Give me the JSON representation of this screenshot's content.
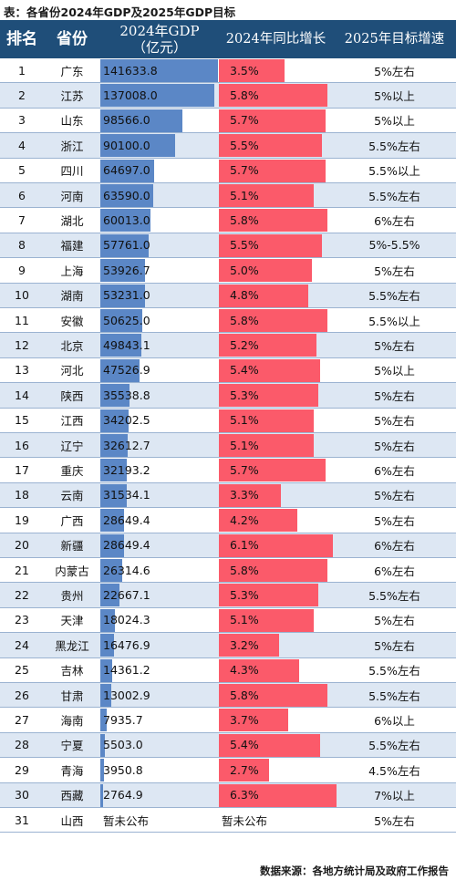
{
  "title": "表：各省份2024年GDP及2025年GDP目标",
  "headers": {
    "rank": "排名",
    "province": "省份",
    "gdp_line1": "2024年GDP",
    "gdp_line2": "（亿元）",
    "growth": "2024年同比增长",
    "target": "2025年目标增速"
  },
  "source": "数据来源：各地方统计局及政府工作报告",
  "colors": {
    "header_bg": "#1f4e79",
    "gdp_bar": "#5b87c6",
    "growth_bar": "#fb5a6a",
    "alt_row": "#dde7f3"
  },
  "chart_data": {
    "type": "table",
    "columns": [
      "排名",
      "省份",
      "2024年GDP（亿元）",
      "2024年同比增长",
      "2025年目标增速"
    ],
    "rows": [
      {
        "rank": "1",
        "province": "广东",
        "gdp": 141633.8,
        "gdp_text": "141633.8",
        "growth": 3.5,
        "growth_text": "3.5%",
        "target": "5%左右"
      },
      {
        "rank": "2",
        "province": "江苏",
        "gdp": 137008.0,
        "gdp_text": "137008.0",
        "growth": 5.8,
        "growth_text": "5.8%",
        "target": "5%以上"
      },
      {
        "rank": "3",
        "province": "山东",
        "gdp": 98566.0,
        "gdp_text": "98566.0",
        "growth": 5.7,
        "growth_text": "5.7%",
        "target": "5%以上"
      },
      {
        "rank": "4",
        "province": "浙江",
        "gdp": 90100.0,
        "gdp_text": "90100.0",
        "growth": 5.5,
        "growth_text": "5.5%",
        "target": "5.5%左右"
      },
      {
        "rank": "5",
        "province": "四川",
        "gdp": 64697.0,
        "gdp_text": "64697.0",
        "growth": 5.7,
        "growth_text": "5.7%",
        "target": "5.5%以上"
      },
      {
        "rank": "6",
        "province": "河南",
        "gdp": 63590.0,
        "gdp_text": "63590.0",
        "growth": 5.1,
        "growth_text": "5.1%",
        "target": "5.5%左右"
      },
      {
        "rank": "7",
        "province": "湖北",
        "gdp": 60013.0,
        "gdp_text": "60013.0",
        "growth": 5.8,
        "growth_text": "5.8%",
        "target": "6%左右"
      },
      {
        "rank": "8",
        "province": "福建",
        "gdp": 57761.0,
        "gdp_text": "57761.0",
        "growth": 5.5,
        "growth_text": "5.5%",
        "target": "5%-5.5%"
      },
      {
        "rank": "9",
        "province": "上海",
        "gdp": 53926.7,
        "gdp_text": "53926.7",
        "growth": 5.0,
        "growth_text": "5.0%",
        "target": "5%左右"
      },
      {
        "rank": "10",
        "province": "湖南",
        "gdp": 53231.0,
        "gdp_text": "53231.0",
        "growth": 4.8,
        "growth_text": "4.8%",
        "target": "5.5%左右"
      },
      {
        "rank": "11",
        "province": "安徽",
        "gdp": 50625.0,
        "gdp_text": "50625.0",
        "growth": 5.8,
        "growth_text": "5.8%",
        "target": "5.5%以上"
      },
      {
        "rank": "12",
        "province": "北京",
        "gdp": 49843.1,
        "gdp_text": "49843.1",
        "growth": 5.2,
        "growth_text": "5.2%",
        "target": "5%左右"
      },
      {
        "rank": "13",
        "province": "河北",
        "gdp": 47526.9,
        "gdp_text": "47526.9",
        "growth": 5.4,
        "growth_text": "5.4%",
        "target": "5%以上"
      },
      {
        "rank": "14",
        "province": "陕西",
        "gdp": 35538.8,
        "gdp_text": "35538.8",
        "growth": 5.3,
        "growth_text": "5.3%",
        "target": "5%左右"
      },
      {
        "rank": "15",
        "province": "江西",
        "gdp": 34202.5,
        "gdp_text": "34202.5",
        "growth": 5.1,
        "growth_text": "5.1%",
        "target": "5%左右"
      },
      {
        "rank": "16",
        "province": "辽宁",
        "gdp": 32612.7,
        "gdp_text": "32612.7",
        "growth": 5.1,
        "growth_text": "5.1%",
        "target": "5%左右"
      },
      {
        "rank": "17",
        "province": "重庆",
        "gdp": 32193.2,
        "gdp_text": "32193.2",
        "growth": 5.7,
        "growth_text": "5.7%",
        "target": "6%左右"
      },
      {
        "rank": "18",
        "province": "云南",
        "gdp": 31534.1,
        "gdp_text": "31534.1",
        "growth": 3.3,
        "growth_text": "3.3%",
        "target": "5%左右"
      },
      {
        "rank": "19",
        "province": "广西",
        "gdp": 28649.4,
        "gdp_text": "28649.4",
        "growth": 4.2,
        "growth_text": "4.2%",
        "target": "5%左右"
      },
      {
        "rank": "20",
        "province": "新疆",
        "gdp": 28649.4,
        "gdp_text": "28649.4",
        "growth": 6.1,
        "growth_text": "6.1%",
        "target": "6%左右"
      },
      {
        "rank": "21",
        "province": "内蒙古",
        "gdp": 26314.6,
        "gdp_text": "26314.6",
        "growth": 5.8,
        "growth_text": "5.8%",
        "target": "6%左右"
      },
      {
        "rank": "22",
        "province": "贵州",
        "gdp": 22667.1,
        "gdp_text": "22667.1",
        "growth": 5.3,
        "growth_text": "5.3%",
        "target": "5.5%左右"
      },
      {
        "rank": "23",
        "province": "天津",
        "gdp": 18024.3,
        "gdp_text": "18024.3",
        "growth": 5.1,
        "growth_text": "5.1%",
        "target": "5%左右"
      },
      {
        "rank": "24",
        "province": "黑龙江",
        "gdp": 16476.9,
        "gdp_text": "16476.9",
        "growth": 3.2,
        "growth_text": "3.2%",
        "target": "5%左右"
      },
      {
        "rank": "25",
        "province": "吉林",
        "gdp": 14361.2,
        "gdp_text": "14361.2",
        "growth": 4.3,
        "growth_text": "4.3%",
        "target": "5.5%左右"
      },
      {
        "rank": "26",
        "province": "甘肃",
        "gdp": 13002.9,
        "gdp_text": "13002.9",
        "growth": 5.8,
        "growth_text": "5.8%",
        "target": "5.5%左右"
      },
      {
        "rank": "27",
        "province": "海南",
        "gdp": 7935.7,
        "gdp_text": "7935.7",
        "growth": 3.7,
        "growth_text": "3.7%",
        "target": "6%以上"
      },
      {
        "rank": "28",
        "province": "宁夏",
        "gdp": 5503.0,
        "gdp_text": "5503.0",
        "growth": 5.4,
        "growth_text": "5.4%",
        "target": "5.5%左右"
      },
      {
        "rank": "29",
        "province": "青海",
        "gdp": 3950.8,
        "gdp_text": "3950.8",
        "growth": 2.7,
        "growth_text": "2.7%",
        "target": "4.5%左右"
      },
      {
        "rank": "30",
        "province": "西藏",
        "gdp": 2764.9,
        "gdp_text": "2764.9",
        "growth": 6.3,
        "growth_text": "6.3%",
        "target": "7%以上"
      },
      {
        "rank": "31",
        "province": "山西",
        "gdp": null,
        "gdp_text": "暂未公布",
        "growth": null,
        "growth_text": "暂未公布",
        "target": "5%左右"
      }
    ]
  }
}
